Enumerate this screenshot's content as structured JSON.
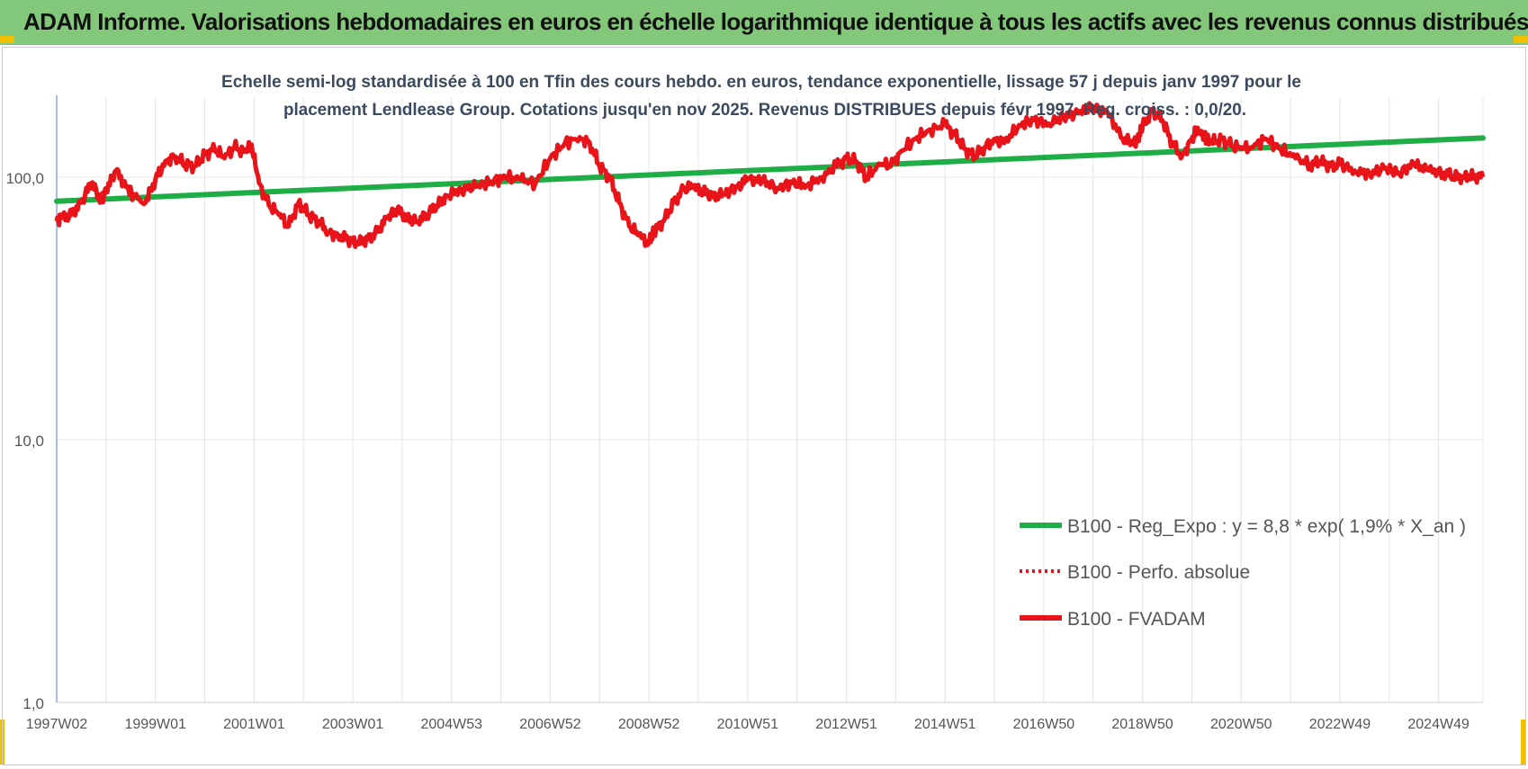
{
  "banner": {
    "title": "ADAM Informe. Valorisations hebdomadaires en euros en échelle logarithmique identique à tous les actifs avec les revenus connus distribués"
  },
  "colors": {
    "banner": "#82c77a",
    "regression": "#1fad45",
    "fvadam": "#e8141a",
    "perfo": "#e8141a",
    "corner": "#f0c000"
  },
  "chart_data": {
    "type": "line",
    "title_lines": [
      "Echelle semi-log standardisée à 100 en Tfin des cours hebdo. en euros, tendance exponentielle, lissage 57 j depuis janv 1997 pour le",
      "placement Lendlease Group. Cotations jusqu'en nov 2025. Revenus DISTRIBUES depuis févr 1997. Reg. croiss. : 0,0/20."
    ],
    "y_scale": "log",
    "ylim": [
      1,
      200
    ],
    "y_ticks": [
      {
        "value": 1,
        "label": "1,0"
      },
      {
        "value": 10,
        "label": "10,0"
      },
      {
        "value": 100,
        "label": "100,0"
      }
    ],
    "x_range": [
      1997.0,
      2025.9
    ],
    "x_ticks": [
      {
        "x": 1997.0,
        "label": "1997W02"
      },
      {
        "x": 1999.0,
        "label": "1999W01"
      },
      {
        "x": 2001.0,
        "label": "2001W01"
      },
      {
        "x": 2003.0,
        "label": "2003W01"
      },
      {
        "x": 2005.0,
        "label": "2004W53"
      },
      {
        "x": 2007.0,
        "label": "2006W52"
      },
      {
        "x": 2009.0,
        "label": "2008W52"
      },
      {
        "x": 2011.0,
        "label": "2010W51"
      },
      {
        "x": 2013.0,
        "label": "2012W51"
      },
      {
        "x": 2015.0,
        "label": "2014W51"
      },
      {
        "x": 2017.0,
        "label": "2016W50"
      },
      {
        "x": 2019.0,
        "label": "2018W50"
      },
      {
        "x": 2021.0,
        "label": "2020W50"
      },
      {
        "x": 2023.0,
        "label": "2022W49"
      },
      {
        "x": 2025.0,
        "label": "2024W49"
      }
    ],
    "legend_position": "bottom-right",
    "grid": "vertical",
    "series": [
      {
        "name": "B100 - Reg_Expo : y = 8,8 * exp( 1,9% *  X_an )",
        "style": "solid-green",
        "x": [
          1997.0,
          2025.9
        ],
        "y": [
          81,
          141
        ]
      },
      {
        "name": "B100 - Perfo. absolue",
        "style": "dotted-red",
        "x": [],
        "y": []
      },
      {
        "name": "B100 - FVADAM",
        "style": "solid-red",
        "x": [
          1997.0,
          1997.1,
          1997.3,
          1997.5,
          1997.7,
          1997.9,
          1998.0,
          1998.2,
          1998.4,
          1998.55,
          1998.8,
          1999.0,
          1999.2,
          1999.4,
          1999.6,
          1999.8,
          2000.0,
          2000.2,
          2000.4,
          2000.6,
          2000.8,
          2000.95,
          2001.1,
          2001.3,
          2001.5,
          2001.7,
          2001.9,
          2002.1,
          2002.3,
          2002.5,
          2002.7,
          2002.9,
          2003.1,
          2003.3,
          2003.5,
          2003.7,
          2003.9,
          2004.1,
          2004.3,
          2004.5,
          2004.7,
          2004.9,
          2005.2,
          2005.5,
          2005.8,
          2006.1,
          2006.4,
          2006.7,
          2007.0,
          2007.3,
          2007.6,
          2007.8,
          2008.0,
          2008.2,
          2008.4,
          2008.6,
          2008.8,
          2009.0,
          2009.1,
          2009.3,
          2009.5,
          2009.7,
          2009.9,
          2010.1,
          2010.3,
          2010.5,
          2010.8,
          2011.0,
          2011.3,
          2011.6,
          2011.9,
          2012.2,
          2012.5,
          2012.8,
          2013.0,
          2013.2,
          2013.4,
          2013.7,
          2013.9,
          2014.1,
          2014.4,
          2014.7,
          2015.0,
          2015.2,
          2015.4,
          2015.6,
          2015.8,
          2016.0,
          2016.2,
          2016.5,
          2016.8,
          2017.1,
          2017.4,
          2017.7,
          2018.0,
          2018.3,
          2018.6,
          2018.8,
          2018.9,
          2019.0,
          2019.2,
          2019.4,
          2019.6,
          2019.8,
          2020.0,
          2020.1,
          2020.25,
          2020.4,
          2020.6,
          2020.8,
          2021.0,
          2021.2,
          2021.5,
          2021.8,
          2022.1,
          2022.4,
          2022.6,
          2022.8,
          2023.0,
          2023.3,
          2023.6,
          2023.9,
          2024.2,
          2024.5,
          2024.8,
          2025.1,
          2025.3,
          2025.5,
          2025.7,
          2025.9
        ],
        "y": [
          68,
          70,
          72,
          80,
          95,
          82,
          88,
          106,
          92,
          86,
          80,
          98,
          115,
          120,
          112,
          110,
          122,
          128,
          118,
          130,
          125,
          133,
          95,
          78,
          72,
          65,
          80,
          72,
          68,
          62,
          60,
          58,
          56,
          58,
          62,
          70,
          75,
          70,
          68,
          72,
          78,
          85,
          90,
          92,
          96,
          100,
          98,
          95,
          118,
          135,
          142,
          135,
          110,
          100,
          80,
          65,
          60,
          56,
          62,
          68,
          80,
          90,
          92,
          88,
          85,
          86,
          92,
          98,
          97,
          91,
          95,
          93,
          100,
          110,
          118,
          115,
          100,
          112,
          110,
          125,
          140,
          152,
          158,
          145,
          128,
          120,
          130,
          140,
          135,
          158,
          165,
          160,
          170,
          175,
          185,
          175,
          140,
          135,
          140,
          155,
          180,
          165,
          135,
          120,
          140,
          150,
          145,
          135,
          140,
          132,
          128,
          130,
          140,
          128,
          118,
          112,
          115,
          110,
          112,
          106,
          103,
          108,
          104,
          112,
          106,
          104,
          101,
          100,
          101,
          100
        ]
      }
    ]
  }
}
